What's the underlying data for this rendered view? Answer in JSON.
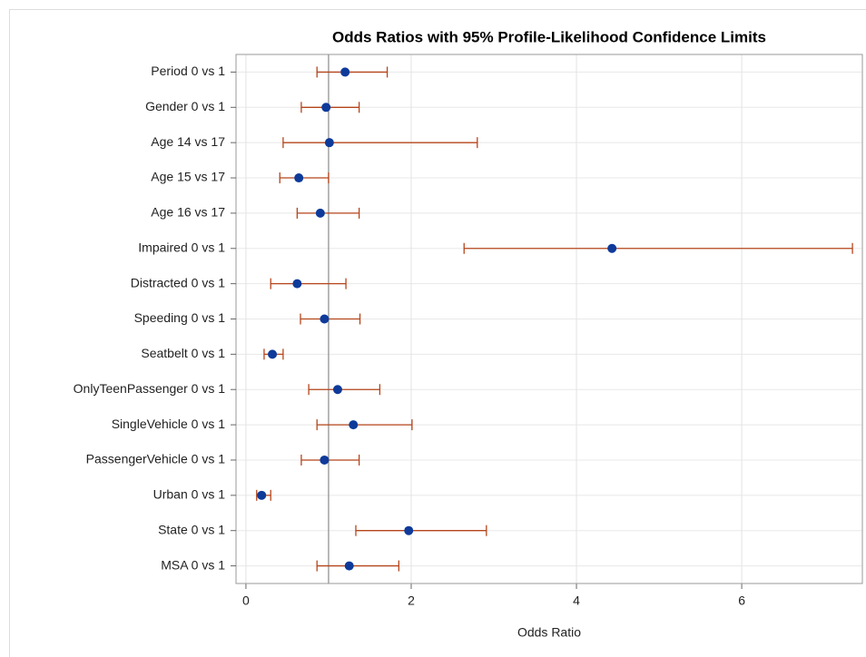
{
  "chart_data": {
    "type": "errorbar",
    "title": "Odds Ratios with 95% Profile-Likelihood Confidence Limits",
    "xlabel": "Odds Ratio",
    "categories": [
      "Period 0 vs 1",
      "Gender 0 vs 1",
      "Age 14 vs 17",
      "Age 15 vs 17",
      "Age 16 vs 17",
      "Impaired 0 vs 1",
      "Distracted 0 vs 1",
      "Speeding 0 vs 1",
      "Seatbelt 0 vs 1",
      "OnlyTeenPassenger 0 vs 1",
      "SingleVehicle 0 vs 1",
      "PassengerVehicle 0 vs 1",
      "Urban 0 vs 1",
      "State 0 vs 1",
      "MSA 0 vs 1"
    ],
    "values": [
      1.2,
      0.97,
      1.01,
      0.64,
      0.9,
      4.43,
      0.62,
      0.95,
      0.32,
      1.11,
      1.3,
      0.95,
      0.19,
      1.97,
      1.25
    ],
    "lower": [
      0.86,
      0.67,
      0.45,
      0.41,
      0.62,
      2.64,
      0.3,
      0.66,
      0.22,
      0.76,
      0.86,
      0.67,
      0.13,
      1.33,
      0.86
    ],
    "upper": [
      1.71,
      1.37,
      2.8,
      1.0,
      1.37,
      7.34,
      1.21,
      1.38,
      0.45,
      1.62,
      2.01,
      1.37,
      0.3,
      2.91,
      1.85
    ],
    "point_color": "#0e3a9a",
    "bar_color": "#b5451b",
    "reference_line": 1,
    "xlim": [
      -0.12,
      7.46
    ],
    "xticks": [
      0,
      2,
      4,
      6
    ],
    "grid": true
  }
}
